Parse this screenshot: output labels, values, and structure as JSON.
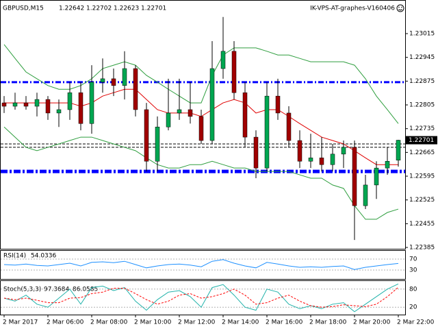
{
  "chart_data": {
    "type": "candlestick",
    "title": "GBPUSD,M15",
    "watermark": "IK-VPS-AT-graphes-V160406",
    "categories": [
      "2 Mar 2017",
      null,
      null,
      null,
      "2 Mar 06:00",
      null,
      null,
      null,
      "2 Mar 08:00",
      null,
      null,
      null,
      "2 Mar 10:00",
      null,
      null,
      null,
      "2 Mar 12:00",
      null,
      null,
      null,
      "2 Mar 14:00",
      null,
      null,
      null,
      "2 Mar 16:00",
      null,
      null,
      null,
      "2 Mar 18:00",
      null,
      null,
      null,
      "2 Mar 20:00",
      null,
      null,
      null,
      "2 Mar 22:00"
    ],
    "open": [
      1.22811,
      1.22801,
      1.22811,
      1.22801,
      1.22821,
      1.22781,
      1.22791,
      1.22841,
      1.2275,
      1.22872,
      1.22882,
      1.22862,
      1.22912,
      1.22791,
      1.22639,
      1.2274,
      1.22781,
      1.22791,
      1.22771,
      1.227,
      1.22912,
      1.22963,
      1.22841,
      1.2271,
      1.22619,
      1.22831,
      1.22781,
      1.227,
      1.22639,
      1.22649,
      1.22629,
      1.2266,
      1.2268,
      1.22508,
      1.22569,
      1.22619,
      1.22642
    ],
    "high": [
      1.22831,
      1.22841,
      1.22831,
      1.22841,
      1.22831,
      1.22821,
      1.22872,
      1.22872,
      1.22922,
      1.22942,
      1.22912,
      1.22963,
      1.22922,
      1.22811,
      1.22771,
      1.22882,
      1.22882,
      1.22872,
      1.22791,
      1.22993,
      1.23064,
      1.22993,
      1.22872,
      1.2273,
      1.22872,
      1.22882,
      1.22801,
      1.2273,
      1.2272,
      1.2271,
      1.2269,
      1.227,
      1.227,
      1.22599,
      1.22639,
      1.2268,
      1.22702
    ],
    "low": [
      1.22781,
      1.22791,
      1.22791,
      1.22771,
      1.22761,
      1.2274,
      1.22761,
      1.2273,
      1.2272,
      1.22841,
      1.22831,
      1.22821,
      1.22771,
      1.22609,
      1.22609,
      1.2273,
      1.22761,
      1.2275,
      1.2269,
      1.2269,
      1.22882,
      1.22821,
      1.2268,
      1.22589,
      1.22609,
      1.22761,
      1.2268,
      1.22619,
      1.22619,
      1.22609,
      1.22609,
      1.22619,
      1.22407,
      1.22498,
      1.22528,
      1.22599,
      1.22623
    ],
    "close": [
      1.22801,
      1.22811,
      1.22801,
      1.22821,
      1.22781,
      1.22791,
      1.22841,
      1.2275,
      1.22872,
      1.22882,
      1.22862,
      1.22912,
      1.22791,
      1.22639,
      1.2274,
      1.22781,
      1.22791,
      1.22771,
      1.227,
      1.22912,
      1.22963,
      1.22841,
      1.2271,
      1.22619,
      1.22831,
      1.22781,
      1.227,
      1.22639,
      1.22649,
      1.22629,
      1.2266,
      1.2268,
      1.22508,
      1.22569,
      1.22619,
      1.22639,
      1.22701
    ],
    "up_color": "#00a651",
    "down_color": "#a00000",
    "ma": {
      "color": "#e00000",
      "values": [
        1.22811,
        1.22811,
        1.22811,
        1.22811,
        1.22811,
        1.22811,
        1.22811,
        1.22801,
        1.22811,
        1.22831,
        1.22841,
        1.22851,
        1.22851,
        1.22821,
        1.22791,
        1.22781,
        1.22781,
        1.22781,
        1.22771,
        1.22791,
        1.22811,
        1.22821,
        1.22811,
        1.22781,
        1.22791,
        1.22791,
        1.22771,
        1.2275,
        1.2273,
        1.2271,
        1.227,
        1.2269,
        1.2267,
        1.22649,
        1.22629,
        1.22629,
        1.22629
      ]
    },
    "bands": [
      {
        "color": "#2e9e3e",
        "values": [
          1.22983,
          1.22942,
          1.22902,
          1.22882,
          1.22862,
          1.22851,
          1.22851,
          1.22862,
          1.22882,
          1.22912,
          1.22922,
          1.22932,
          1.22922,
          1.22892,
          1.22872,
          1.22851,
          1.22831,
          1.22811,
          1.22811,
          1.22892,
          1.22952,
          1.22973,
          1.22973,
          1.22973,
          1.22963,
          1.22952,
          1.22952,
          1.22942,
          1.22932,
          1.22932,
          1.22932,
          1.22932,
          1.22922,
          1.22882,
          1.22831,
          1.22791,
          1.2275
        ]
      },
      {
        "color": "#2e9e3e",
        "values": [
          1.2274,
          1.2271,
          1.2268,
          1.2267,
          1.2268,
          1.2269,
          1.227,
          1.2271,
          1.2271,
          1.227,
          1.2269,
          1.2268,
          1.2267,
          1.22649,
          1.22629,
          1.22619,
          1.22619,
          1.22629,
          1.22629,
          1.22639,
          1.22629,
          1.22619,
          1.22619,
          1.22609,
          1.22609,
          1.22609,
          1.22609,
          1.22599,
          1.22589,
          1.22589,
          1.22569,
          1.22559,
          1.22508,
          1.22468,
          1.22468,
          1.22488,
          1.22498
        ]
      }
    ],
    "levels": [
      {
        "value": 1.22872,
        "color": "#0000ff",
        "style": "dashdot"
      },
      {
        "value": 1.2269,
        "color": "#000000",
        "style": "dash"
      },
      {
        "value": 1.2268,
        "color": "#000000",
        "style": "dash"
      },
      {
        "value": 1.22609,
        "color": "#0000ff",
        "style": "thick"
      }
    ],
    "ylim": [
      1.22381,
      1.2311
    ],
    "yticks": [
      1.23015,
      1.22945,
      1.22875,
      1.22805,
      1.22735,
      1.22665,
      1.22595,
      1.22525,
      1.22455,
      1.22385
    ],
    "panels": [
      {
        "type": "line",
        "title": "RSI(14)",
        "ylim": [
          0,
          100
        ],
        "yticks": [
          70,
          30
        ],
        "series": [
          {
            "color": "#1e90ff",
            "style": "solid",
            "values": [
              50,
              48,
              52,
              47,
              45,
              50,
              55,
              45,
              58,
              60,
              57,
              62,
              50,
              38,
              45,
              50,
              52,
              48,
              42,
              62,
              68,
              55,
              45,
              38,
              58,
              52,
              45,
              40,
              42,
              40,
              43,
              45,
              32,
              40,
              45,
              50,
              54.0336
            ]
          }
        ]
      },
      {
        "type": "line",
        "title": "Stoch(5,3,3)",
        "ylim": [
          0,
          100
        ],
        "yticks": [
          80,
          20
        ],
        "series": [
          {
            "color": "#20b2aa",
            "style": "solid",
            "values": [
              50,
              40,
              60,
              30,
              20,
              50,
              80,
              30,
              85,
              90,
              75,
              85,
              40,
              10,
              45,
              70,
              75,
              55,
              20,
              85,
              95,
              60,
              20,
              10,
              80,
              70,
              30,
              15,
              25,
              15,
              30,
              35,
              5,
              30,
              55,
              80,
              97.3684
            ]
          },
          {
            "color": "#ff0000",
            "style": "dash",
            "values": [
              50,
              45,
              50,
              43,
              35,
              35,
              50,
              52,
              65,
              70,
              83,
              83,
              65,
              45,
              30,
              40,
              60,
              65,
              50,
              55,
              65,
              80,
              60,
              30,
              35,
              50,
              60,
              40,
              25,
              20,
              22,
              28,
              25,
              22,
              30,
              55,
              86.0585
            ]
          }
        ]
      }
    ]
  }
}
